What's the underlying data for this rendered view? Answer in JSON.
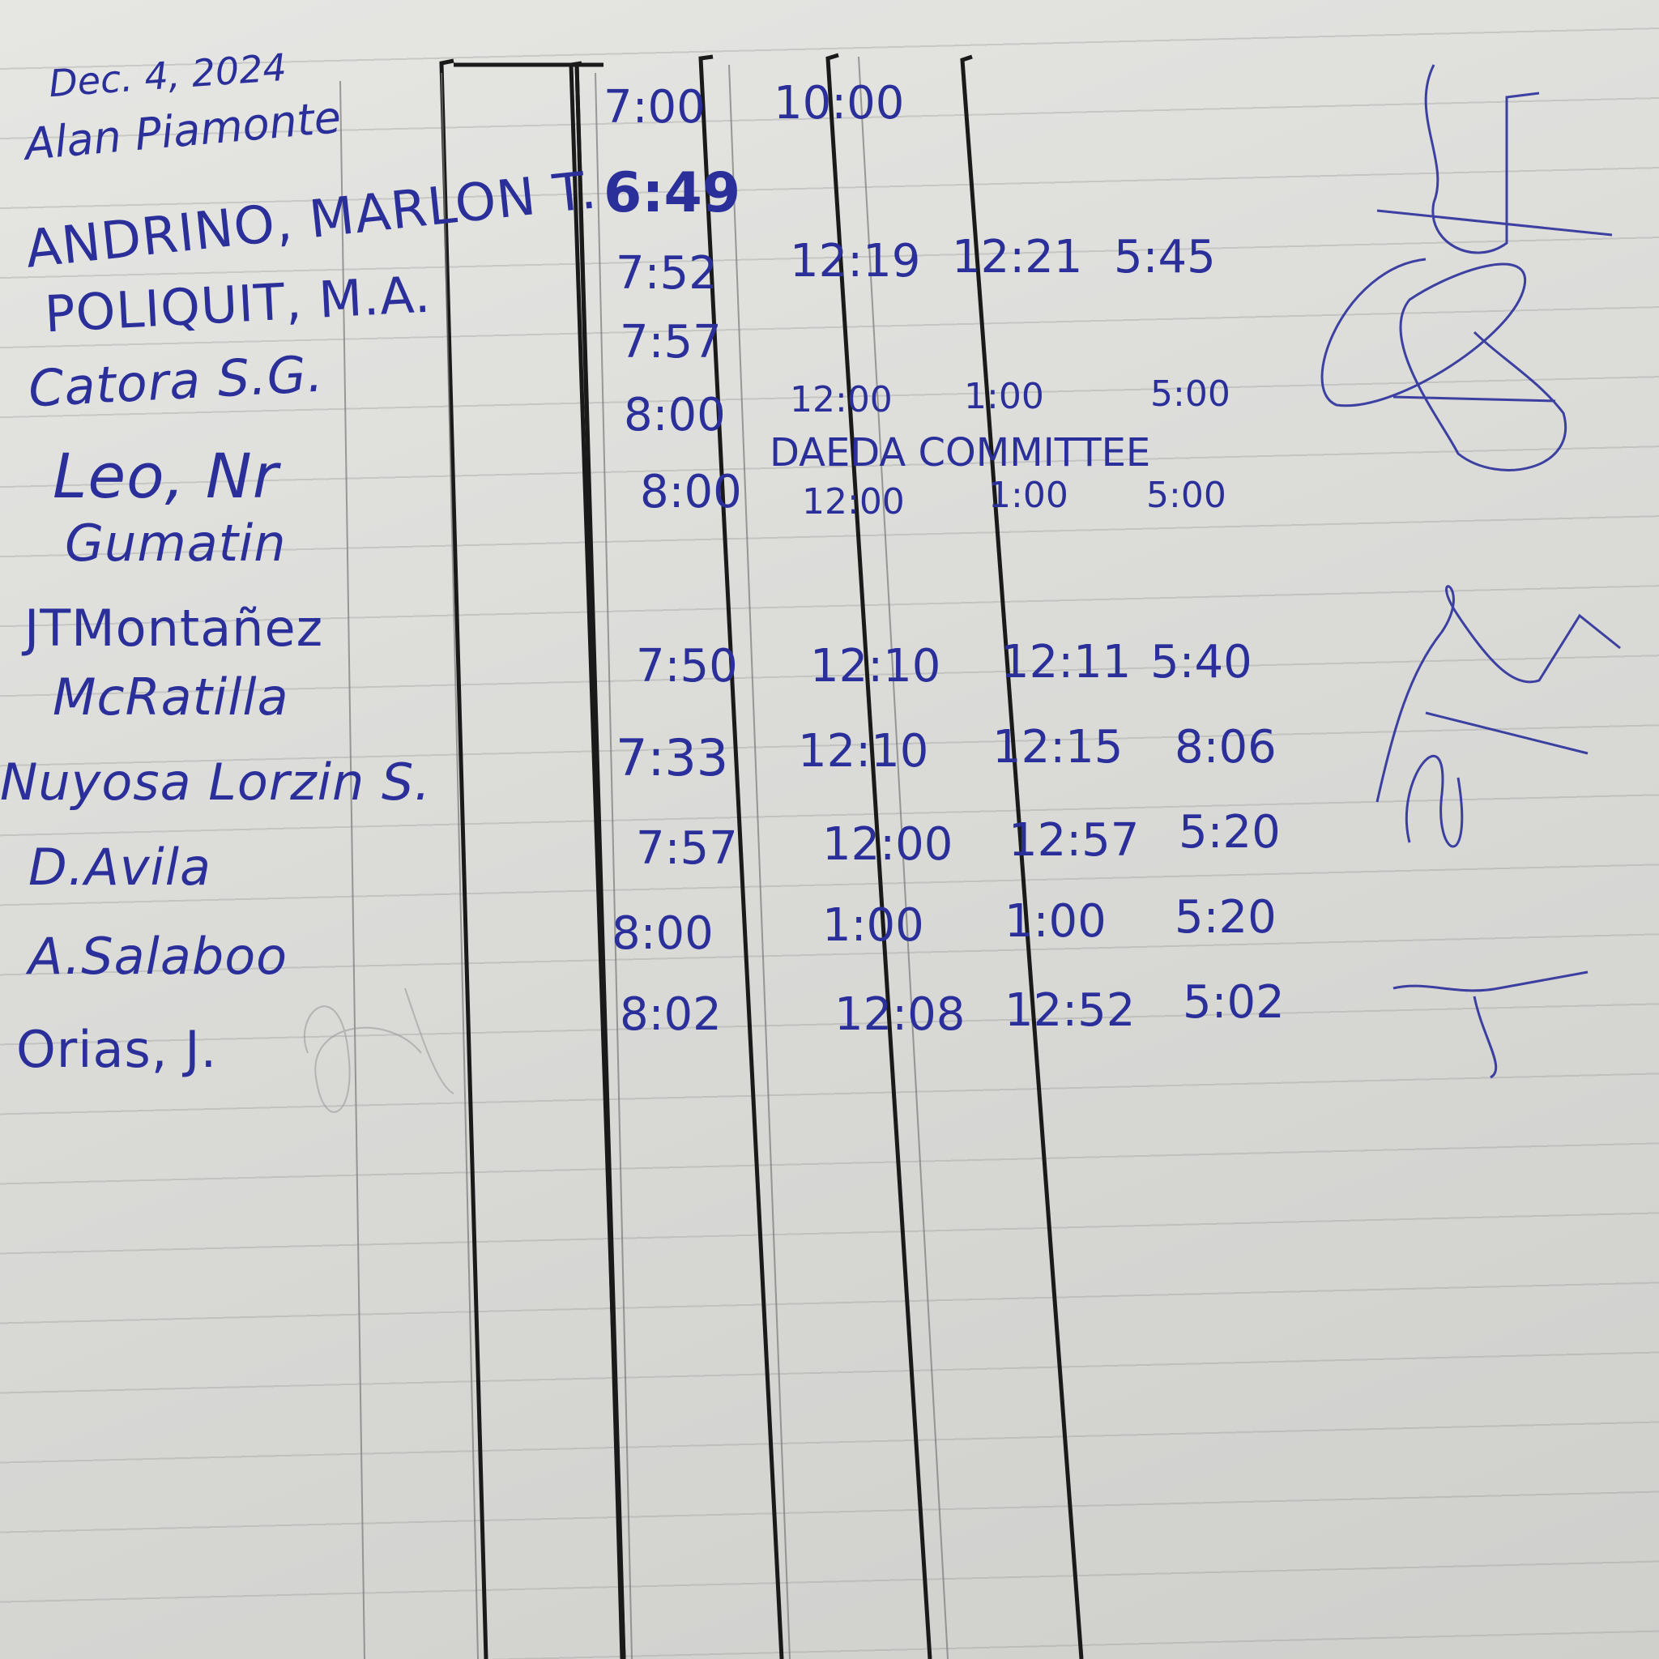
{
  "header": {
    "date": "Dec. 4, 2024",
    "name": "Alan Piamonte",
    "time_in": "7:00",
    "time_out": "10:00"
  },
  "note": "DAEDA COMMITTEE",
  "rows": [
    {
      "name": "ANDRINO, MARLON T.",
      "am_in": "6:49",
      "am_out": "",
      "pm_in": "",
      "pm_out": ""
    },
    {
      "name": "POLIQUIT, M.A.",
      "am_in": "7:52",
      "am_out": "12:19",
      "pm_in": "12:21",
      "pm_out": "5:45"
    },
    {
      "name": "Catora S.G.",
      "am_in": "7:57",
      "am_out": "",
      "pm_in": "",
      "pm_out": ""
    },
    {
      "name": "Leo, Nr",
      "am_in": "8:00",
      "am_out": "12:00",
      "pm_in": "1:00",
      "pm_out": "5:00"
    },
    {
      "name": "Gumatin",
      "am_in": "8:00",
      "am_out": "12:00",
      "pm_in": "1:00",
      "pm_out": "5:00"
    },
    {
      "name": "JTMontañez",
      "am_in": "",
      "am_out": "",
      "pm_in": "",
      "pm_out": ""
    },
    {
      "name": "McRatilla",
      "am_in": "7:50",
      "am_out": "12:10",
      "pm_in": "12:11",
      "pm_out": "5:40"
    },
    {
      "name": "Nuyosa Lorzin S.",
      "am_in": "7:33",
      "am_out": "12:10",
      "pm_in": "12:15",
      "pm_out": "8:06"
    },
    {
      "name": "D.Avila",
      "am_in": "7:57",
      "am_out": "12:00",
      "pm_in": "12:57",
      "pm_out": "5:20"
    },
    {
      "name": "A.Salaboo",
      "am_in": "8:00",
      "am_out": "1:00",
      "pm_in": "1:00",
      "pm_out": "5:20"
    },
    {
      "name": "Orias, J.",
      "am_in": "8:02",
      "am_out": "12:08",
      "pm_in": "12:52",
      "pm_out": "5:02"
    }
  ],
  "colors": {
    "ink": "#2a2f9a",
    "paper": "#dcdcd9",
    "rule": "#1a1a1a"
  }
}
